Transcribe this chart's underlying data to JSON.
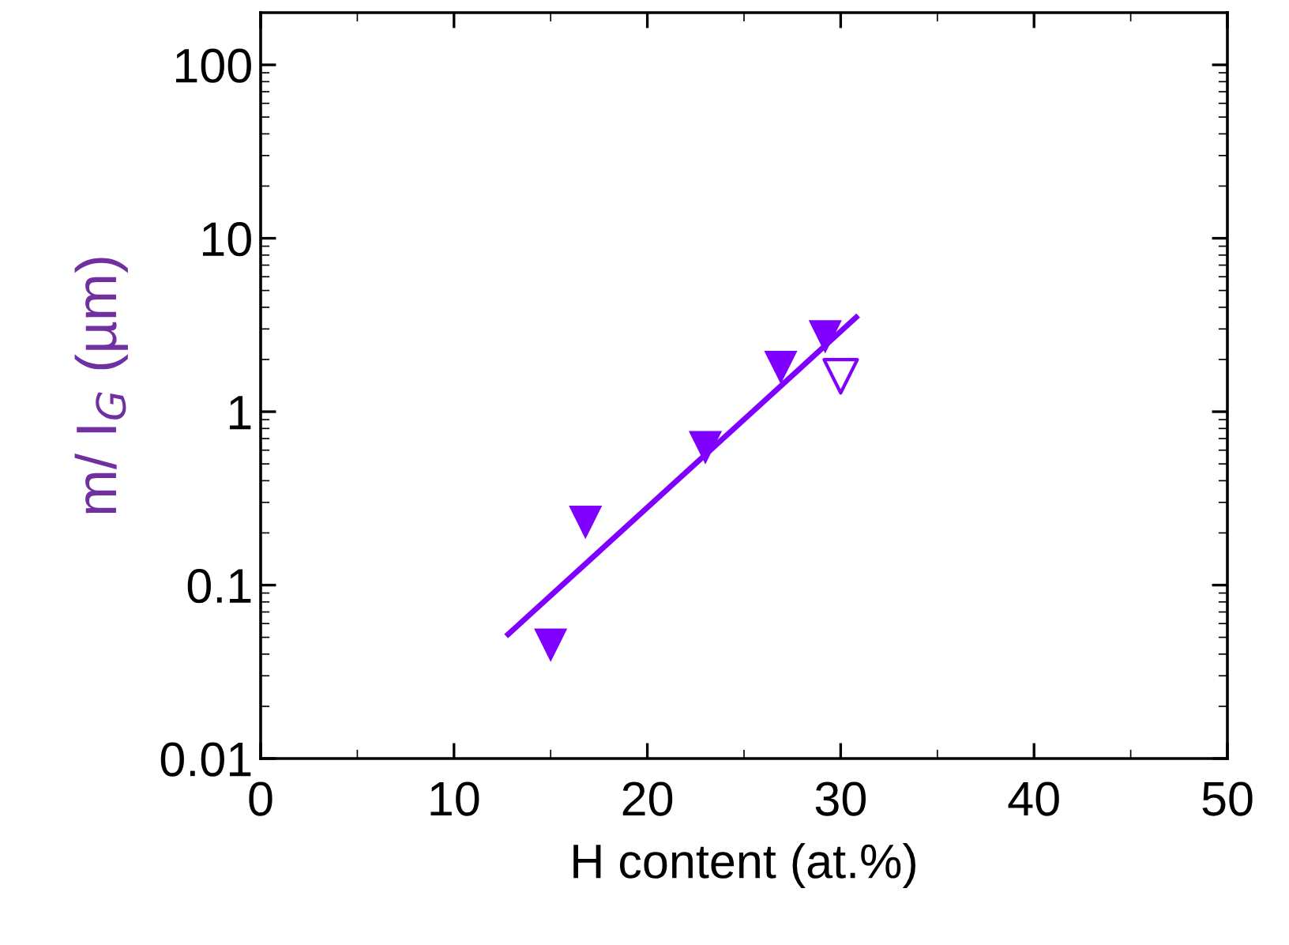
{
  "chart_data": {
    "type": "scatter",
    "xlabel": "H content (at.%)",
    "ylabel": "m/ I$_{G}$ (µm)",
    "log": "y",
    "xlim": [
      0,
      50
    ],
    "xticks": [
      0,
      10,
      20,
      30,
      40,
      50
    ],
    "ylim": [
      0.01,
      200
    ],
    "yticks": [
      {
        "value": 0.01,
        "label": "0.01"
      },
      {
        "value": 0.1,
        "label": "0.1"
      },
      {
        "value": 1,
        "label": "1"
      },
      {
        "value": 10,
        "label": "10"
      },
      {
        "value": 100,
        "label": "100"
      }
    ],
    "grid": false,
    "legend": false,
    "marker": "triangle",
    "series": [
      {
        "color": "#7f00ff",
        "x": [
          15.0,
          16.8,
          23.0,
          26.9,
          29.2
        ],
        "values": [
          0.045,
          0.23,
          0.62,
          1.8,
          2.7
        ]
      },
      {
        "color": "#7f00ff",
        "x": [
          30.0
        ],
        "values": [
          1.6
        ]
      },
      {
        "type": "line",
        "color": "#7f00ff",
        "marker": "none",
        "x": [
          12.8,
          30.8
        ],
        "values": [
          0.052,
          3.5
        ]
      }
    ]
  }
}
